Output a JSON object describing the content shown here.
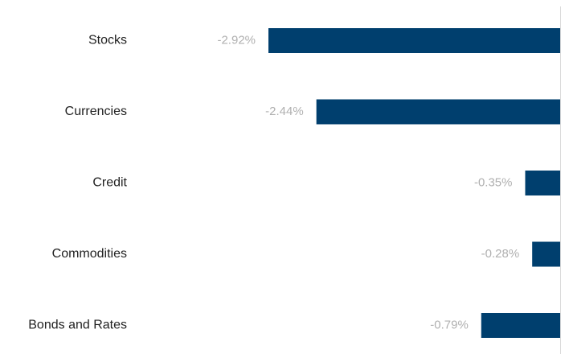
{
  "chart_data": {
    "type": "bar",
    "orientation": "horizontal",
    "title": "",
    "xlabel": "",
    "ylabel": "",
    "categories": [
      "Stocks",
      "Currencies",
      "Credit",
      "Commodities",
      "Bonds and Rates"
    ],
    "values": [
      -2.92,
      -2.44,
      -0.35,
      -0.28,
      -0.79
    ],
    "value_labels": [
      "-2.92%",
      "-2.44%",
      "-0.35%",
      "-0.28%",
      "-0.79%"
    ],
    "xlim": [
      -2.92,
      0
    ],
    "grid": false,
    "legend": "none",
    "colors": {
      "bar": "#003f6e",
      "category_label": "#222222",
      "value_label": "#b0b0b0",
      "zero_line": "#d9d9d9"
    }
  }
}
